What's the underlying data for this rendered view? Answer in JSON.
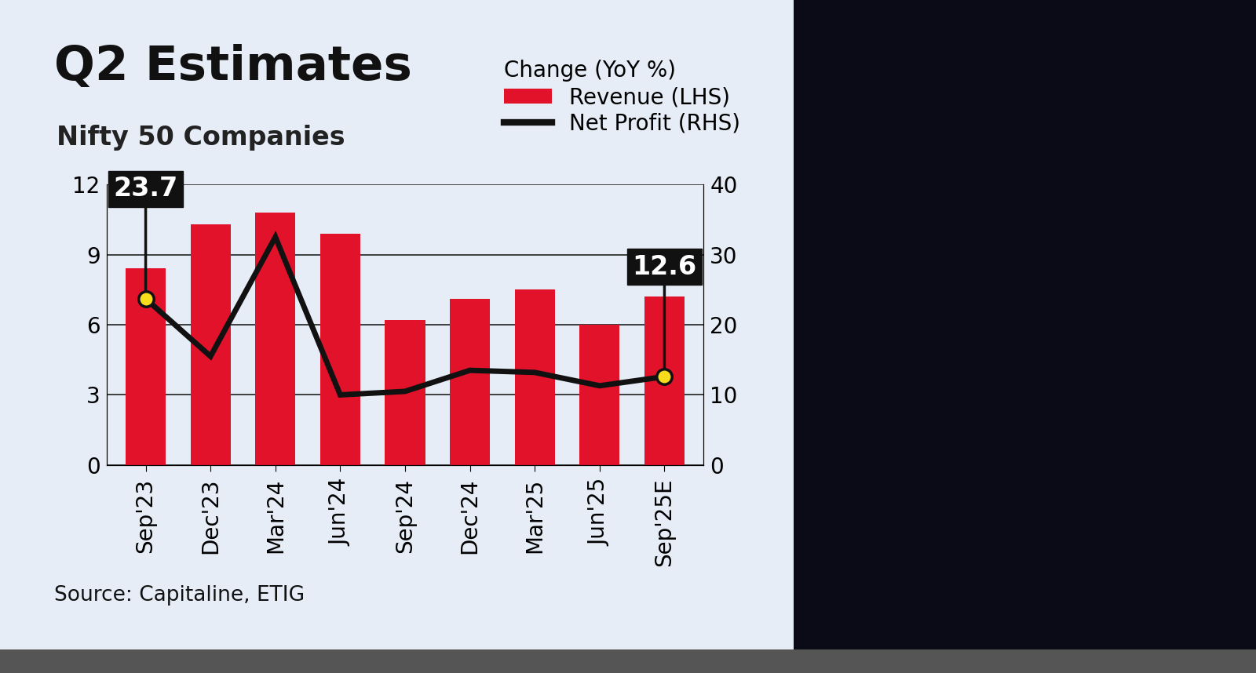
{
  "chart_data": {
    "type": "bar",
    "title": "Q2 Estimates",
    "subtitle": "Nifty 50 Companies",
    "source": "Source: Capitaline, ETIG",
    "legend_title": "Change (YoY %)",
    "legend": "upper right",
    "grid": true,
    "categories": [
      "Sep'23",
      "Dec'23",
      "Mar'24",
      "Jun'24",
      "Sep'24",
      "Dec'24",
      "Mar'25",
      "Jun'25",
      "Sep'25E"
    ],
    "ylim": [
      0,
      12
    ],
    "yticks": [
      0,
      3,
      6,
      9,
      12
    ],
    "y2lim": [
      0,
      40
    ],
    "y2ticks": [
      0,
      10,
      20,
      30,
      40
    ],
    "series": [
      {
        "name": "Revenue (LHS)",
        "type": "bar",
        "color": "#e3122b",
        "values": [
          8.4,
          10.3,
          10.8,
          9.9,
          6.2,
          7.1,
          7.5,
          6.0,
          7.2
        ]
      },
      {
        "name": "Net Profit (RHS)",
        "type": "line",
        "axis": "y2",
        "color": "#111111",
        "marker": "o",
        "line_style": "solid",
        "values": [
          23.7,
          15.5,
          32.5,
          10.0,
          10.5,
          13.5,
          13.2,
          11.3,
          12.6
        ],
        "value_labels": [
          "23.7",
          null,
          null,
          null,
          null,
          null,
          null,
          null,
          "12.6"
        ]
      }
    ]
  }
}
